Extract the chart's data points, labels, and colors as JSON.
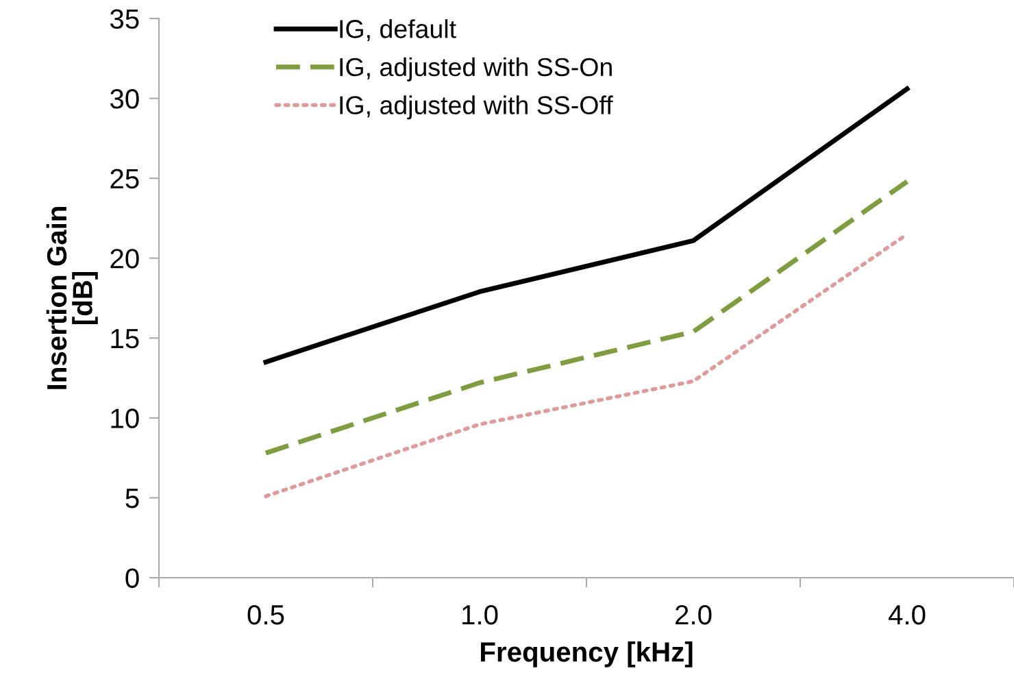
{
  "chart_data": {
    "type": "line",
    "xlabel": "Frequency [kHz]",
    "ylabel": "Insertion Gain\n[dB]",
    "categories": [
      "0.5",
      "1.0",
      "2.0",
      "4.0"
    ],
    "series": [
      {
        "name": "IG, default",
        "color": "#000000",
        "line_style": "solid",
        "values": [
          13.5,
          17.9,
          21.1,
          30.6
        ]
      },
      {
        "name": "IG, adjusted with SS-On",
        "color": "#7f9d3f",
        "line_style": "dashed",
        "values": [
          7.8,
          12.2,
          15.4,
          24.8
        ]
      },
      {
        "name": "IG, adjusted with SS-Off",
        "color": "#e09a9a",
        "line_style": "dotted",
        "values": [
          5.1,
          9.6,
          12.3,
          21.5
        ]
      }
    ],
    "ylim": [
      0,
      35
    ],
    "yticks": [
      0,
      5,
      10,
      15,
      20,
      25,
      30,
      35
    ],
    "grid": false,
    "legend": "top left",
    "marker": "none"
  }
}
